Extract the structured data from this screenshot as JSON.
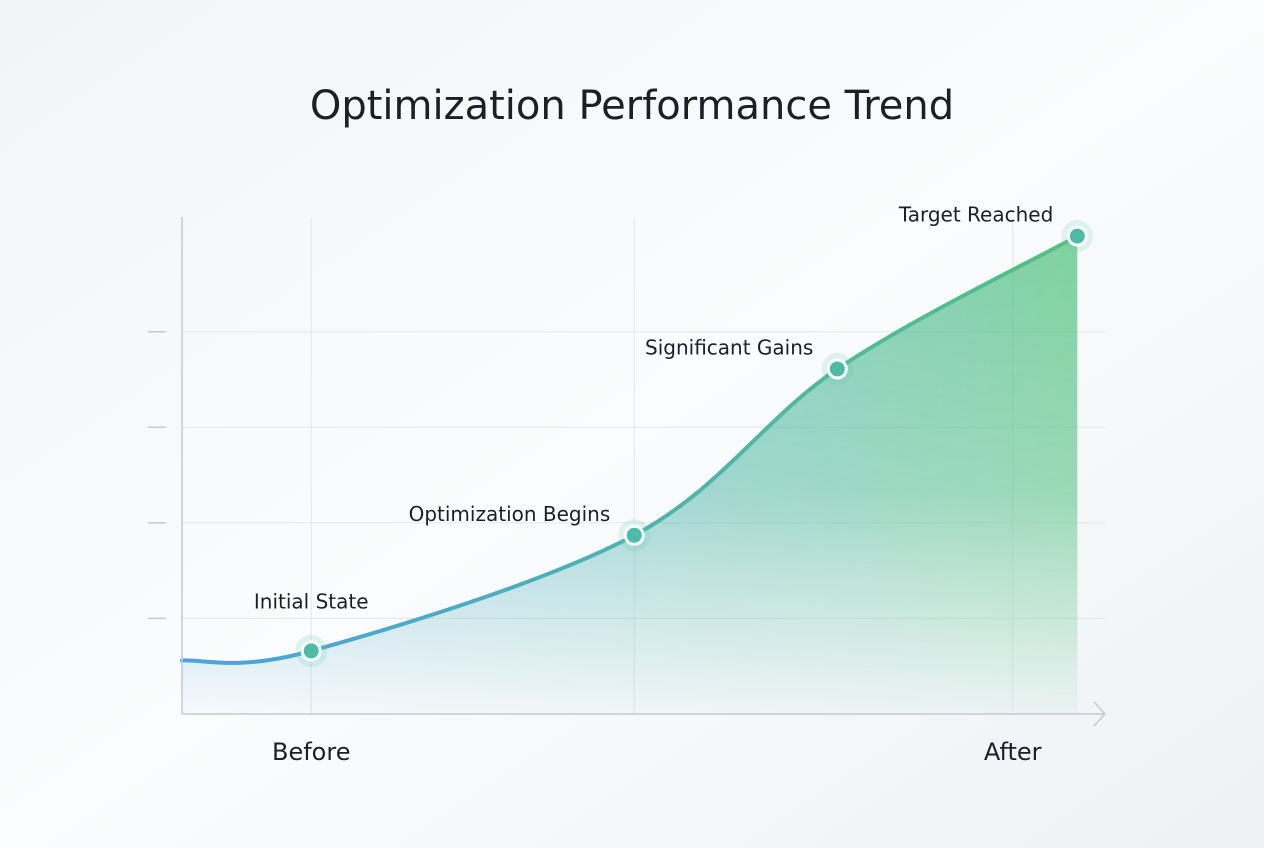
{
  "chart_data": {
    "type": "area",
    "title": "Optimization Performance Trend",
    "x": [
      0,
      1.4,
      4.9,
      7.1,
      9.7
    ],
    "series": [
      {
        "values": [
          0.56,
          0.66,
          1.87,
          3.61,
          5.0
        ],
        "colors": [
          "#4aa3e0",
          "#52c27f"
        ]
      }
    ],
    "annotations": [
      null,
      "Initial State",
      "Optimization Begins",
      "Significant Gains",
      "Target Reached"
    ],
    "xlim": [
      0,
      10
    ],
    "xticks": [
      {
        "value": 1.4,
        "label": "Before"
      },
      {
        "value": 4.9,
        "label": null
      },
      {
        "value": 9.0,
        "label": "After"
      }
    ],
    "ylim": [
      0,
      5.2
    ],
    "yticks": [
      {
        "value": 1,
        "label": null
      },
      {
        "value": 2,
        "label": null
      },
      {
        "value": 3,
        "label": null
      },
      {
        "value": 4,
        "label": null
      }
    ],
    "grid": true
  }
}
